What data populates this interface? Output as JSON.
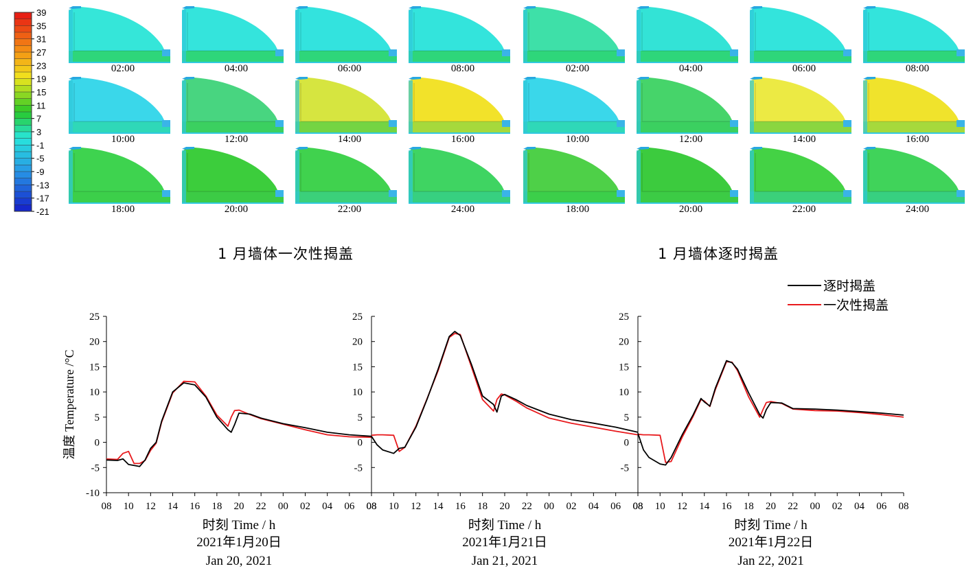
{
  "colorbar": {
    "ticks": [
      "39",
      "35",
      "31",
      "27",
      "23",
      "19",
      "15",
      "11",
      "7",
      "3",
      "-1",
      "-5",
      "-9",
      "-13",
      "-17",
      "-21"
    ],
    "min": -21,
    "max": 39
  },
  "map_groups": [
    {
      "title": "1 月墙体一次性揭盖",
      "panels": [
        {
          "time": "02:00",
          "fill": "#35e6d9",
          "floor": "#2ed67a"
        },
        {
          "time": "04:00",
          "fill": "#34e4dc",
          "floor": "#2ed67a"
        },
        {
          "time": "06:00",
          "fill": "#33e3de",
          "floor": "#2ed67a"
        },
        {
          "time": "08:00",
          "fill": "#33e4dc",
          "floor": "#2ed67a"
        },
        {
          "time": "10:00",
          "fill": "#3ad7ea",
          "floor": "#2fd8b8"
        },
        {
          "time": "12:00",
          "fill": "#48d580",
          "floor": "#3bd060"
        },
        {
          "time": "14:00",
          "fill": "#d6e540",
          "floor": "#74d443"
        },
        {
          "time": "16:00",
          "fill": "#f2e22a",
          "floor": "#a6d93c"
        },
        {
          "time": "18:00",
          "fill": "#3ed34f",
          "floor": "#3ccf4a"
        },
        {
          "time": "20:00",
          "fill": "#3ccd3c",
          "floor": "#3ccb45"
        },
        {
          "time": "22:00",
          "fill": "#40d24e",
          "floor": "#3bd07a"
        },
        {
          "time": "24:00",
          "fill": "#3fd462",
          "floor": "#37d080"
        }
      ]
    },
    {
      "title": "1 月墙体逐时揭盖",
      "panels": [
        {
          "time": "02:00",
          "fill": "#3ee0a8",
          "floor": "#2ed67a"
        },
        {
          "time": "04:00",
          "fill": "#33e3d6",
          "floor": "#2ed67a"
        },
        {
          "time": "06:00",
          "fill": "#33e4dc",
          "floor": "#2ed67a"
        },
        {
          "time": "08:00",
          "fill": "#33e4dc",
          "floor": "#2ed67a"
        },
        {
          "time": "10:00",
          "fill": "#3ad7ea",
          "floor": "#2fd8b8"
        },
        {
          "time": "12:00",
          "fill": "#46d46a",
          "floor": "#3bd060"
        },
        {
          "time": "14:00",
          "fill": "#ecea44",
          "floor": "#8ad640"
        },
        {
          "time": "16:00",
          "fill": "#f0e32c",
          "floor": "#a6d93c"
        },
        {
          "time": "18:00",
          "fill": "#4ed048",
          "floor": "#3ccf4a"
        },
        {
          "time": "20:00",
          "fill": "#3ccb3e",
          "floor": "#3ccb45"
        },
        {
          "time": "22:00",
          "fill": "#44d245",
          "floor": "#3bd07a"
        },
        {
          "time": "24:00",
          "fill": "#40d35a",
          "floor": "#37d080"
        }
      ]
    }
  ],
  "chart_data": {
    "type": "line",
    "ylabel": "温度 Temperature /°C",
    "ylim": [
      -10,
      25
    ],
    "yticks": [
      -10,
      -5,
      0,
      5,
      10,
      15,
      20,
      25
    ],
    "xticks": [
      "08",
      "10",
      "12",
      "14",
      "16",
      "18",
      "20",
      "22",
      "00",
      "02",
      "04",
      "06",
      "08"
    ],
    "legend": {
      "position": "top-right"
    },
    "panels": [
      {
        "xlabel": "时刻 Time / h",
        "date_cn": "2021年1月20日",
        "date_en": "Jan 20, 2021",
        "x": [
          8,
          9,
          9.5,
          10,
          10.5,
          11,
          11.5,
          12,
          12.5,
          13,
          14,
          15,
          16,
          17,
          18,
          19,
          19.3,
          19.6,
          20,
          21,
          22,
          24,
          26,
          28,
          30,
          32
        ],
        "series": [
          {
            "name": "逐时揭盖",
            "color": "#000000",
            "values": [
              -3.5,
              -3.6,
              -3.3,
              -4.4,
              -4.6,
              -4.8,
              -3.5,
              -1.2,
              0.0,
              4.2,
              10.0,
              11.8,
              11.4,
              9.0,
              5.0,
              2.5,
              2.0,
              3.5,
              5.8,
              5.6,
              4.8,
              3.7,
              2.9,
              2.0,
              1.5,
              1.2
            ]
          },
          {
            "name": "一次性揭盖",
            "color": "#e8191c",
            "values": [
              -3.3,
              -3.4,
              -2.2,
              -1.8,
              -4.2,
              -4.2,
              -3.6,
              -1.6,
              -0.2,
              4.0,
              9.8,
              12.1,
              12.0,
              9.2,
              5.4,
              3.2,
              5.0,
              6.3,
              6.4,
              5.5,
              4.7,
              3.6,
              2.5,
              1.5,
              1.1,
              1.0
            ]
          }
        ]
      },
      {
        "xlabel": "时刻 Time / h",
        "date_cn": "2021年1月21日",
        "date_en": "Jan 21, 2021",
        "x": [
          8,
          8.5,
          9,
          10,
          10.5,
          11,
          12,
          13,
          14,
          15,
          15.5,
          16,
          17,
          18,
          19,
          19.3,
          19.7,
          20,
          21,
          22,
          24,
          26,
          28,
          30,
          32
        ],
        "series": [
          {
            "name": "逐时揭盖",
            "color": "#000000",
            "values": [
              1.2,
              -0.5,
              -1.5,
              -2.2,
              -1.2,
              -1.0,
              3.0,
              8.5,
              14.5,
              21.0,
              22.0,
              21.2,
              15.5,
              9.2,
              7.5,
              6.0,
              9.2,
              9.5,
              8.5,
              7.3,
              5.6,
              4.5,
              3.8,
              3.0,
              2.0
            ]
          },
          {
            "name": "一次性揭盖",
            "color": "#e8191c",
            "values": [
              1.4,
              1.5,
              1.5,
              1.4,
              -1.8,
              -1.0,
              3.2,
              8.6,
              14.2,
              20.8,
              21.6,
              21.4,
              15.0,
              8.5,
              6.2,
              8.5,
              9.6,
              9.4,
              8.2,
              6.8,
              4.8,
              3.8,
              3.0,
              2.2,
              1.5
            ]
          }
        ]
      },
      {
        "xlabel": "时刻 Time / h",
        "date_cn": "2021年1月22日",
        "date_en": "Jan 22, 2021",
        "x": [
          8,
          8.5,
          9,
          10,
          10.5,
          11,
          12,
          13,
          13.7,
          14,
          14.5,
          15,
          16,
          16.5,
          17,
          18,
          19,
          19.3,
          19.6,
          20,
          21,
          22,
          24,
          26,
          28,
          30,
          32
        ],
        "series": [
          {
            "name": "逐时揭盖",
            "color": "#000000",
            "values": [
              1.8,
              -1.5,
              -3.0,
              -4.3,
              -4.5,
              -3.0,
              1.5,
              5.5,
              8.7,
              8.0,
              7.2,
              10.8,
              16.2,
              15.8,
              14.5,
              9.8,
              5.5,
              4.8,
              6.5,
              7.9,
              7.8,
              6.7,
              6.6,
              6.4,
              6.1,
              5.8,
              5.4
            ]
          },
          {
            "name": "一次性揭盖",
            "color": "#e8191c",
            "values": [
              1.6,
              1.5,
              1.5,
              1.4,
              -4.0,
              -3.8,
              1.0,
              5.2,
              8.5,
              8.2,
              7.1,
              10.5,
              16.0,
              15.9,
              14.2,
              9.0,
              5.0,
              6.5,
              7.9,
              8.1,
              7.7,
              6.6,
              6.3,
              6.2,
              5.9,
              5.5,
              5.0
            ]
          }
        ]
      }
    ]
  }
}
